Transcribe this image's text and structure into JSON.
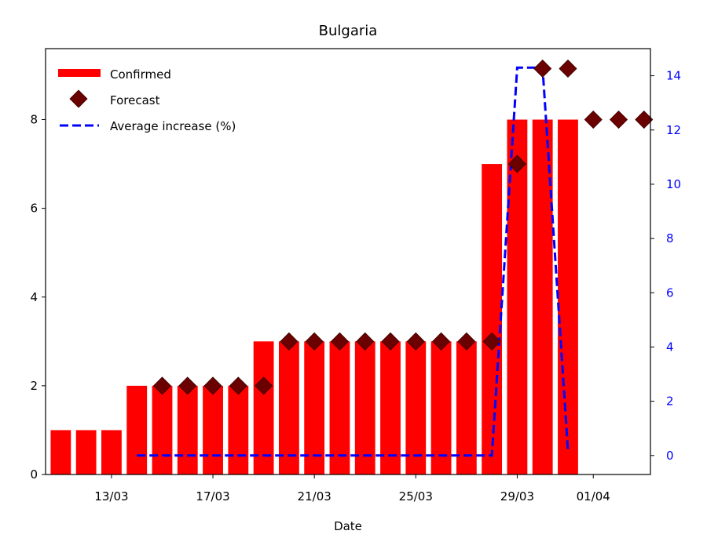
{
  "chart_data": {
    "type": "bar",
    "title": "Bulgaria",
    "xlabel": "Date",
    "ylabel": "",
    "ylabel_right": "",
    "ylim": [
      0,
      9.6
    ],
    "ylim_right": [
      -0.7,
      15.0
    ],
    "y_ticks": [
      "0",
      "2",
      "4",
      "6",
      "8"
    ],
    "y_ticks_right": [
      "0",
      "2",
      "4",
      "6",
      "8",
      "10",
      "12",
      "14"
    ],
    "x_tick_labels": [
      "13/03",
      "17/03",
      "21/03",
      "25/03",
      "29/03",
      "01/04"
    ],
    "legend_position": "top-left",
    "grid": false,
    "colors": {
      "confirmed": "#ff0000",
      "forecast": "#6b0000",
      "average_increase": "#0000ff",
      "right_axis": "#0000ff"
    },
    "dates": [
      "11/03",
      "12/03",
      "13/03",
      "14/03",
      "15/03",
      "16/03",
      "17/03",
      "18/03",
      "19/03",
      "20/03",
      "21/03",
      "22/03",
      "23/03",
      "24/03",
      "25/03",
      "26/03",
      "27/03",
      "28/03",
      "29/03",
      "30/03",
      "31/03",
      "01/04",
      "02/04",
      "03/04"
    ],
    "series": [
      {
        "name": "Confirmed",
        "kind": "bar",
        "axis": "left",
        "x": [
          "11/03",
          "12/03",
          "13/03",
          "14/03",
          "15/03",
          "16/03",
          "17/03",
          "18/03",
          "19/03",
          "20/03",
          "21/03",
          "22/03",
          "23/03",
          "24/03",
          "25/03",
          "26/03",
          "27/03",
          "28/03",
          "29/03",
          "30/03",
          "31/03"
        ],
        "values": [
          1,
          1,
          1,
          2,
          2,
          2,
          2,
          2,
          3,
          3,
          3,
          3,
          3,
          3,
          3,
          3,
          3,
          7,
          8,
          8,
          8
        ]
      },
      {
        "name": "Forecast",
        "kind": "scatter",
        "axis": "left",
        "x": [
          "15/03",
          "16/03",
          "17/03",
          "18/03",
          "19/03",
          "20/03",
          "21/03",
          "22/03",
          "23/03",
          "24/03",
          "25/03",
          "26/03",
          "27/03",
          "28/03",
          "29/03",
          "30/03",
          "31/03",
          "01/04",
          "02/04",
          "03/04"
        ],
        "values": [
          2,
          2,
          2,
          2,
          2,
          3,
          3,
          3,
          3,
          3,
          3,
          3,
          3,
          3,
          7,
          9.15,
          9.15,
          8,
          8,
          8
        ]
      },
      {
        "name": "Average increase (%)",
        "kind": "line",
        "axis": "right",
        "x": [
          "14/03",
          "15/03",
          "16/03",
          "17/03",
          "18/03",
          "19/03",
          "20/03",
          "21/03",
          "22/03",
          "23/03",
          "24/03",
          "25/03",
          "26/03",
          "27/03",
          "28/03",
          "29/03",
          "30/03",
          "31/03"
        ],
        "values": [
          0,
          0,
          0,
          0,
          0,
          0,
          0,
          0,
          0,
          0,
          0,
          0,
          0,
          0,
          0,
          14.3,
          14.3,
          0.2
        ]
      }
    ]
  }
}
